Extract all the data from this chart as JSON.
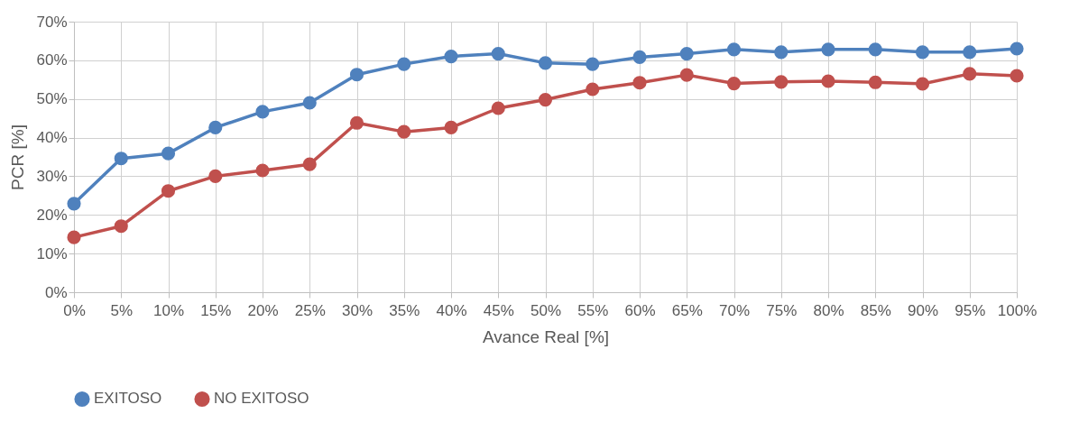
{
  "chart_data": {
    "type": "line",
    "xlabel": "Avance Real [%]",
    "ylabel": "PCR [%]",
    "categories": [
      "0%",
      "5%",
      "10%",
      "15%",
      "20%",
      "25%",
      "30%",
      "35%",
      "40%",
      "45%",
      "50%",
      "55%",
      "60%",
      "65%",
      "70%",
      "75%",
      "80%",
      "85%",
      "90%",
      "95%",
      "100%"
    ],
    "series": [
      {
        "name": "EXITOSO",
        "color": "#4f81bd",
        "values": [
          22.9,
          34.6,
          35.9,
          42.6,
          46.7,
          49.0,
          56.3,
          59.0,
          61.0,
          61.7,
          59.3,
          59.0,
          60.8,
          61.7,
          62.8,
          62.1,
          62.8,
          62.8,
          62.1,
          62.1,
          63.0
        ]
      },
      {
        "name": "NO EXITOSO",
        "color": "#c0504d",
        "values": [
          14.2,
          17.1,
          26.2,
          30.0,
          31.5,
          33.1,
          43.8,
          41.5,
          42.6,
          47.6,
          49.8,
          52.5,
          54.2,
          56.2,
          54.0,
          54.4,
          54.6,
          54.3,
          53.9,
          56.5,
          56.0
        ]
      }
    ],
    "ylim": [
      0,
      70
    ],
    "yticks": [
      {
        "value": 0,
        "label": "0%"
      },
      {
        "value": 10,
        "label": "10%"
      },
      {
        "value": 20,
        "label": "20%"
      },
      {
        "value": 30,
        "label": "30%"
      },
      {
        "value": 40,
        "label": "40%"
      },
      {
        "value": 50,
        "label": "50%"
      },
      {
        "value": 60,
        "label": "60%"
      },
      {
        "value": 70,
        "label": "70%"
      }
    ],
    "grid": true,
    "legend": "bottom",
    "marker": "circle",
    "line_style": "solid"
  }
}
